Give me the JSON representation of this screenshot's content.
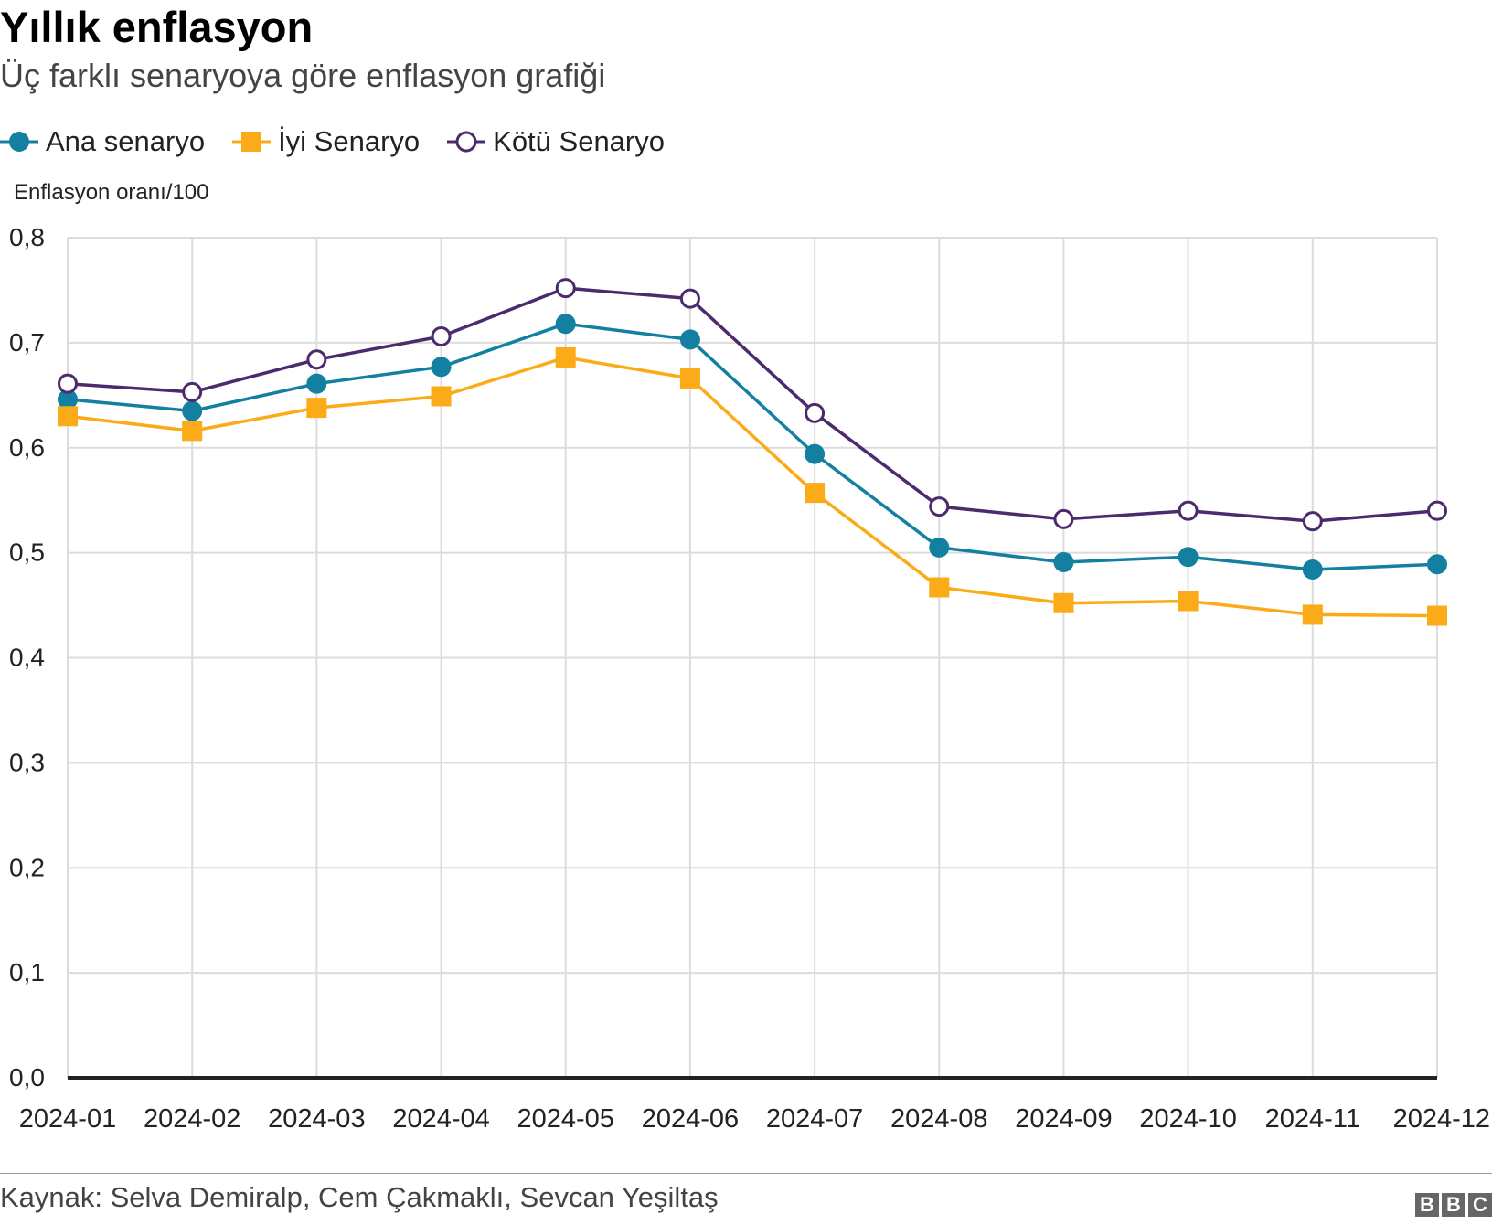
{
  "header": {
    "title": "Yıllık enflasyon",
    "subtitle": "Üç farklı senaryoya göre enflasyon grafiği"
  },
  "legend": [
    {
      "label": "Ana senaryo",
      "color": "#1380a1",
      "marker": "circle-filled"
    },
    {
      "label": "İyi Senaryo",
      "color": "#fbab18",
      "marker": "square-filled"
    },
    {
      "label": "Kötü Senaryo",
      "color": "#4c2a6e",
      "marker": "circle-open"
    }
  ],
  "chart_data": {
    "type": "line",
    "title": "Yıllık enflasyon",
    "subtitle": "Üç farklı senaryoya göre enflasyon grafiği",
    "xlabel": "",
    "ylabel": "Enflasyon oranı/100",
    "ylim": [
      0,
      0.8
    ],
    "yticks": [
      "0,0",
      "0,1",
      "0,2",
      "0,3",
      "0,4",
      "0,5",
      "0,6",
      "0,7",
      "0,8"
    ],
    "grid": true,
    "legend_position": "top-left",
    "categories": [
      "2024-01",
      "2024-02",
      "2024-03",
      "2024-04",
      "2024-05",
      "2024-06",
      "2024-07",
      "2024-08",
      "2024-09",
      "2024-10",
      "2024-11",
      "2024-12"
    ],
    "series": [
      {
        "name": "Ana senaryo",
        "color": "#1380a1",
        "marker": "circle-filled",
        "values": [
          0.646,
          0.635,
          0.661,
          0.677,
          0.718,
          0.703,
          0.594,
          0.505,
          0.491,
          0.496,
          0.484,
          0.489
        ]
      },
      {
        "name": "İyi Senaryo",
        "color": "#fbab18",
        "marker": "square-filled",
        "values": [
          0.63,
          0.616,
          0.638,
          0.649,
          0.686,
          0.666,
          0.557,
          0.467,
          0.452,
          0.454,
          0.441,
          0.44
        ]
      },
      {
        "name": "Kötü Senaryo",
        "color": "#4c2a6e",
        "marker": "circle-open",
        "values": [
          0.661,
          0.653,
          0.684,
          0.706,
          0.752,
          0.742,
          0.633,
          0.544,
          0.532,
          0.54,
          0.53,
          0.54
        ]
      }
    ]
  },
  "footer": {
    "source": "Kaynak: Selva Demiralp, Cem Çakmaklı, Sevcan Yeşiltaş",
    "logo_letters": [
      "B",
      "B",
      "C"
    ]
  }
}
